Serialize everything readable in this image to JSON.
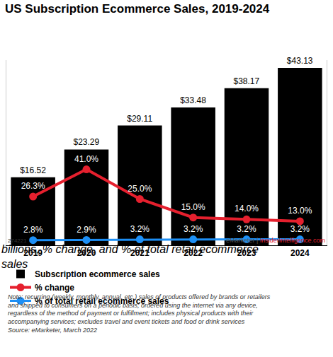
{
  "chart_data": {
    "type": "bar",
    "title": "US Subscription Ecommerce Sales, 2019-2024",
    "subtitle": "billions, % change, and % of total retail ecommerce sales",
    "categories": [
      "2019",
      "2020",
      "2021",
      "2022",
      "2023",
      "2024"
    ],
    "series": [
      {
        "name": "Subscription ecommerce sales",
        "type": "bar",
        "color": "#000000",
        "values": [
          16.52,
          23.29,
          29.11,
          33.48,
          38.17,
          43.13
        ],
        "value_labels": [
          "$16.52",
          "$23.29",
          "$29.11",
          "$33.48",
          "$38.17",
          "$43.13"
        ]
      },
      {
        "name": "% change",
        "type": "line",
        "axis": "y2",
        "color": "#e5202e",
        "marker": "circle",
        "values": [
          26.3,
          41.0,
          25.0,
          15.0,
          14.0,
          13.0
        ],
        "value_labels": [
          "26.3%",
          "41.0%",
          "25.0%",
          "15.0%",
          "14.0%",
          "13.0%"
        ]
      },
      {
        "name": "% of total retail ecommerce sales",
        "type": "line",
        "axis": "y2",
        "color": "#1d8ff5",
        "marker": "circle",
        "values": [
          2.8,
          2.9,
          3.2,
          3.2,
          3.2,
          3.2
        ],
        "value_labels": [
          "2.8%",
          "2.9%",
          "3.2%",
          "3.2%",
          "3.2%",
          "3.2%"
        ]
      }
    ],
    "ylim": [
      0,
      45
    ],
    "y2lim": [
      0,
      100
    ],
    "tick_labels": "x",
    "grid": false,
    "data_labels": true,
    "legend": "bottom",
    "note": [
      "Note: recurring (weekly, monthly, annual, etc.) sales of products offered by brands or retailers",
      "and shipped to consumers on a periodic basis; ordered using the internet via any device,",
      "regardless of the method of payment or fulfillment; includes physical products with their",
      "accompanying services; excludes travel and event tickets and food or drink services"
    ],
    "source": "Source: eMarketer, March 2022",
    "footer": {
      "id": "274221",
      "brand": "eMarketer",
      "separator": "|",
      "site": "InsiderIntelligence.com"
    }
  }
}
